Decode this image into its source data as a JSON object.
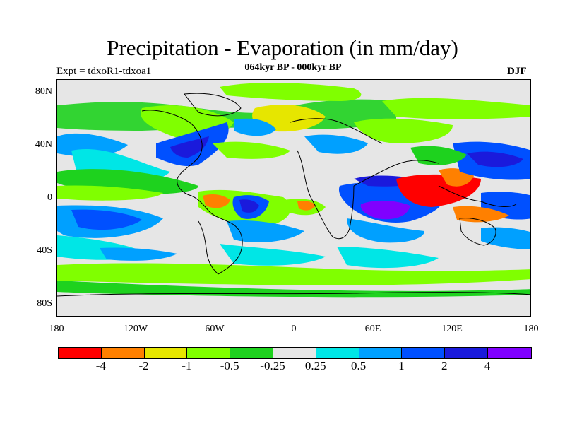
{
  "title": "Precipitation - Evaporation (in mm/day)",
  "experiment": "Expt = tdxoR1-tdxoa1",
  "period": "064kyr BP - 000kyr BP",
  "season": "DJF",
  "lat_labels": [
    "80N",
    "40N",
    "0",
    "40S",
    "80S"
  ],
  "lon_labels": [
    "180",
    "120W",
    "60W",
    "0",
    "60E",
    "120E",
    "180"
  ],
  "colorbar": {
    "colors": [
      "#ff0000",
      "#ff8000",
      "#e6e600",
      "#80ff00",
      "#1ed21e",
      "#e6e6e6",
      "#00e6e6",
      "#00a0ff",
      "#0050ff",
      "#1a1adc",
      "#8000ff"
    ],
    "labels": [
      "-4",
      "-2",
      "-1",
      "-0.5",
      "-0.25",
      "0.25",
      "0.5",
      "1",
      "2",
      "4"
    ]
  }
}
